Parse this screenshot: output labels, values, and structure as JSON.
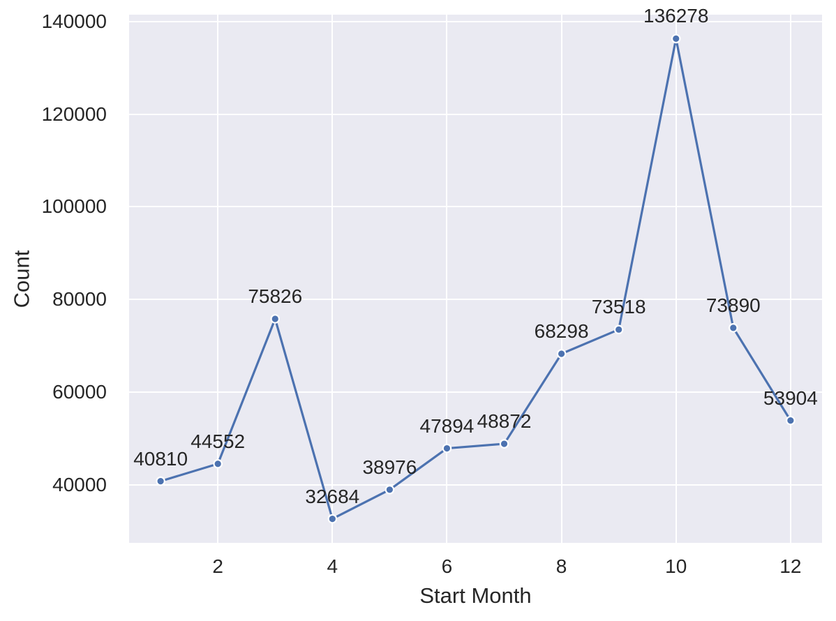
{
  "chart_data": {
    "type": "line",
    "x": [
      1,
      2,
      3,
      4,
      5,
      6,
      7,
      8,
      9,
      10,
      11,
      12
    ],
    "values": [
      40810,
      44552,
      75826,
      32684,
      38976,
      47894,
      48872,
      68298,
      73518,
      136278,
      73890,
      53904
    ],
    "point_labels": [
      "40810",
      "44552",
      "75826",
      "32684",
      "38976",
      "47894",
      "48872",
      "68298",
      "73518",
      "136278",
      "73890",
      "53904"
    ],
    "title": "",
    "xlabel": "Start Month",
    "ylabel": "Count",
    "xticks": [
      2,
      4,
      6,
      8,
      10,
      12
    ],
    "yticks": [
      40000,
      60000,
      80000,
      100000,
      120000,
      140000
    ],
    "xtick_labels": [
      "2",
      "4",
      "6",
      "8",
      "10",
      "12"
    ],
    "ytick_labels": [
      "40000",
      "60000",
      "80000",
      "100000",
      "120000",
      "140000"
    ],
    "xlim": [
      0.45,
      12.55
    ],
    "ylim": [
      27504,
      141458
    ],
    "grid": true,
    "legend": false,
    "colors": {
      "line": "#4c72b0",
      "marker_fill": "#4c72b0",
      "marker_edge": "#ffffff",
      "plot_background": "#eaeaf2",
      "gridline": "#ffffff",
      "text": "#262626",
      "figure_background": "#ffffff"
    }
  }
}
